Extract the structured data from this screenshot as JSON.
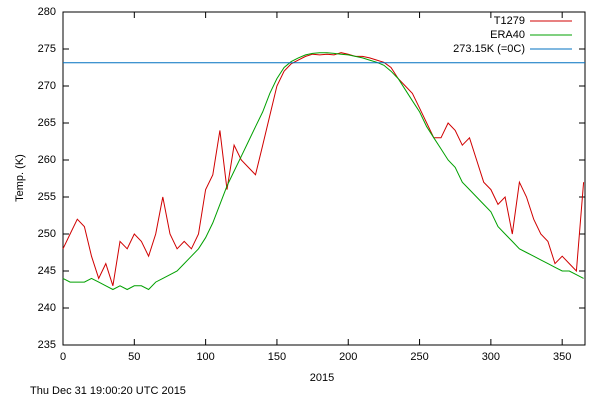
{
  "chart_data": {
    "type": "line",
    "ylabel": "Temp. (K)",
    "xlabel": "2015",
    "footer": "Thu Dec 31 19:00:20 UTC 2015",
    "x": [
      0,
      5,
      10,
      15,
      20,
      25,
      30,
      35,
      40,
      45,
      50,
      55,
      60,
      65,
      70,
      75,
      80,
      85,
      90,
      95,
      100,
      105,
      110,
      115,
      120,
      125,
      130,
      135,
      140,
      145,
      150,
      155,
      160,
      165,
      170,
      175,
      180,
      185,
      190,
      195,
      200,
      205,
      210,
      215,
      220,
      225,
      230,
      235,
      240,
      245,
      250,
      255,
      260,
      265,
      270,
      275,
      280,
      285,
      290,
      295,
      300,
      305,
      310,
      315,
      320,
      325,
      330,
      335,
      340,
      345,
      350,
      355,
      360,
      365
    ],
    "series": [
      {
        "name": "T1279",
        "color": "#d00000",
        "values": [
          248,
          250,
          252,
          251,
          247,
          244,
          246,
          243,
          249,
          248,
          250,
          249,
          247,
          250,
          255,
          250,
          248,
          249,
          248,
          250,
          256,
          258,
          264,
          256,
          262,
          260,
          259,
          258,
          262,
          266,
          270,
          272,
          273,
          273.5,
          274,
          274.3,
          274.2,
          274.3,
          274.2,
          274.5,
          274.3,
          274,
          274,
          273.8,
          273.5,
          273.2,
          272.5,
          271,
          270,
          269,
          267,
          265,
          263,
          263,
          265,
          264,
          262,
          263,
          260,
          257,
          256,
          254,
          255,
          250,
          257,
          255,
          252,
          250,
          249,
          246,
          247,
          246,
          245,
          257
        ]
      },
      {
        "name": "ERA40",
        "color": "#00a000",
        "values": [
          244,
          243.5,
          243.5,
          243.5,
          244,
          243.5,
          243,
          242.5,
          243,
          242.5,
          243,
          243,
          242.5,
          243.5,
          244,
          244.5,
          245,
          246,
          247,
          248,
          249.5,
          251.5,
          254,
          256.5,
          258.5,
          260.5,
          262.5,
          264.5,
          266.5,
          269,
          271,
          272.5,
          273.3,
          273.8,
          274.2,
          274.4,
          274.5,
          274.5,
          274.4,
          274.3,
          274.2,
          274,
          273.8,
          273.5,
          273.2,
          272.8,
          272,
          271,
          269.5,
          268,
          266.5,
          264.5,
          263,
          261.5,
          260,
          259,
          257,
          256,
          255,
          254,
          253,
          251,
          250,
          249,
          248,
          247.5,
          247,
          246.5,
          246,
          245.5,
          245,
          245,
          244.5,
          244
        ]
      },
      {
        "name": "273.15K (=0C)",
        "color": "#0070c0",
        "x": [
          0,
          366
        ],
        "values": [
          273.15,
          273.15
        ]
      }
    ],
    "xlim": [
      0,
      366
    ],
    "xticks": [
      0,
      50,
      100,
      150,
      200,
      250,
      300,
      350
    ],
    "ylim": [
      235,
      280
    ],
    "yticks": [
      235,
      240,
      245,
      250,
      255,
      260,
      265,
      270,
      275,
      280
    ],
    "legend": "top-right"
  }
}
